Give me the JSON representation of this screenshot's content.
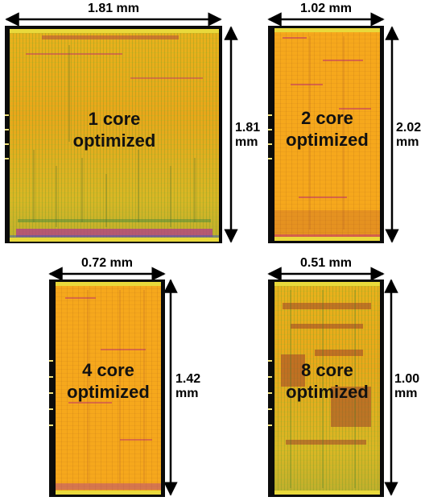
{
  "colors": {
    "core_fill": "#f6a81c",
    "die_border": "#0b0b0b",
    "rail": "#e9d93b",
    "routing_magenta": "#c0306a",
    "routing_green": "#5f9a2a"
  },
  "layouts": [
    {
      "name": "1 core layout",
      "label_line1": "1 core",
      "label_line2": "optimized",
      "width": "1.81 mm",
      "height_line1": "1.81",
      "height_line2": "mm"
    },
    {
      "name": "2 core layout",
      "label_line1": "2 core",
      "label_line2": "optimized",
      "width": "1.02 mm",
      "height_line1": "2.02",
      "height_line2": "mm"
    },
    {
      "name": "4 core layout",
      "label_line1": "4 core",
      "label_line2": "optimized",
      "width": "0.72 mm",
      "height_line1": "1.42",
      "height_line2": "mm"
    },
    {
      "name": "8 core layout",
      "label_line1": "8 core",
      "label_line2": "optimized",
      "width": "0.51 mm",
      "height_line1": "1.00",
      "height_line2": "mm"
    }
  ]
}
